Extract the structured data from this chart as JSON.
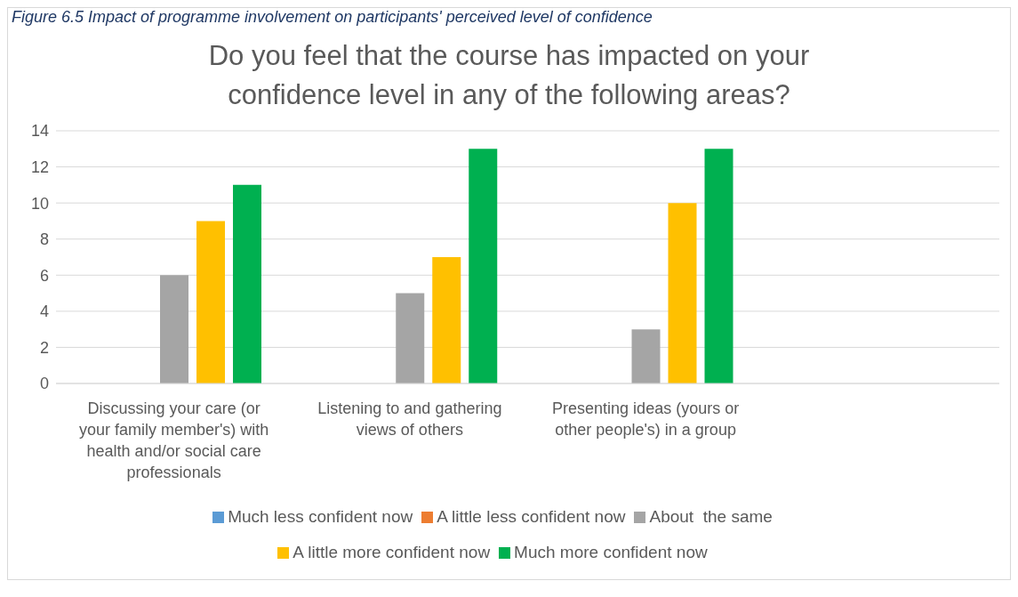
{
  "chart_data": {
    "type": "bar",
    "title": "Do you feel that the course has impacted on your confidence level in any of the following areas?",
    "annotations": [
      "Figure 6.5 Impact of programme involvement on participants' perceived level of confidence"
    ],
    "categories": [
      "Discussing your care (or your family member's) with health and/or social care professionals",
      "Listening to and gathering views of others",
      "Presenting ideas (yours or other people's) in a group",
      null
    ],
    "series": [
      {
        "name": "Much less confident now",
        "color": "#5b9bd5",
        "values": [
          0,
          0,
          0,
          null
        ]
      },
      {
        "name": "A little less confident now",
        "color": "#ed7d31",
        "values": [
          0,
          0,
          0,
          null
        ]
      },
      {
        "name": "About  the same",
        "color": "#a5a5a5",
        "values": [
          6,
          5,
          3,
          null
        ]
      },
      {
        "name": "A little more confident now",
        "color": "#ffc000",
        "values": [
          9,
          7,
          10,
          null
        ]
      },
      {
        "name": "Much more confident now",
        "color": "#00b050",
        "values": [
          11,
          13,
          13,
          null
        ]
      }
    ],
    "ylim": [
      0,
      14
    ],
    "yticks": [
      0,
      2,
      4,
      6,
      8,
      10,
      12,
      14
    ],
    "grid": "y",
    "legend": "bottom"
  }
}
